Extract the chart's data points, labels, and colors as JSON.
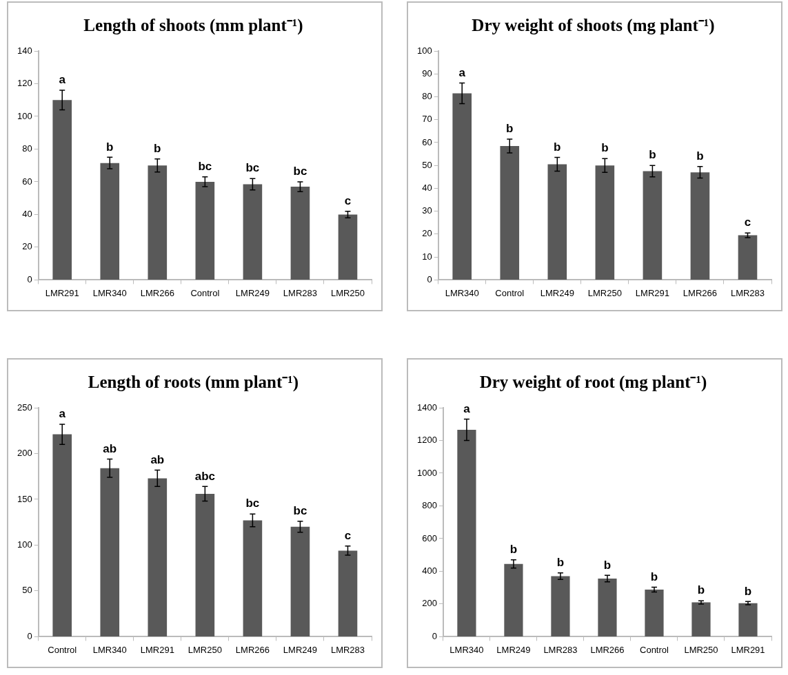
{
  "chart_data": [
    {
      "type": "bar",
      "title": "Length of shoots (mm plant⁻¹)",
      "categories": [
        "LMR291",
        "LMR340",
        "LMR266",
        "Control",
        "LMR249",
        "LMR283",
        "LMR250"
      ],
      "values": [
        110,
        71.5,
        70,
        60,
        58.5,
        57,
        40
      ],
      "errors": [
        6,
        3.5,
        4,
        3,
        3.5,
        3,
        2
      ],
      "color": "#595959",
      "ylim": [
        0,
        140
      ],
      "yticks": [
        0,
        20,
        40,
        60,
        80,
        100,
        120,
        140
      ],
      "grid": false,
      "annotations": [
        {
          "text": "a",
          "x": "LMR291",
          "y": 116
        },
        {
          "text": "b",
          "x": "LMR340",
          "y": 75
        },
        {
          "text": "b",
          "x": "LMR266",
          "y": 74
        },
        {
          "text": "bc",
          "x": "Control",
          "y": 63
        },
        {
          "text": "bc",
          "x": "LMR249",
          "y": 62
        },
        {
          "text": "bc",
          "x": "LMR283",
          "y": 60
        },
        {
          "text": "c",
          "x": "LMR250",
          "y": 42
        }
      ]
    },
    {
      "type": "bar",
      "title": "Dry weight of shoots (mg plant⁻¹)",
      "categories": [
        "LMR340",
        "Control",
        "LMR249",
        "LMR250",
        "LMR291",
        "LMR266",
        "LMR283"
      ],
      "values": [
        81.5,
        58.5,
        50.5,
        50,
        47.5,
        47,
        19.5
      ],
      "errors": [
        4.5,
        3,
        3,
        3,
        2.5,
        2.5,
        1
      ],
      "color": "#595959",
      "ylim": [
        0,
        100
      ],
      "yticks": [
        0,
        10,
        20,
        30,
        40,
        50,
        60,
        70,
        80,
        90,
        100
      ],
      "grid": false,
      "annotations": [
        {
          "text": "a",
          "x": "LMR340",
          "y": 86
        },
        {
          "text": "b",
          "x": "Control",
          "y": 61.5
        },
        {
          "text": "b",
          "x": "LMR249",
          "y": 53.5
        },
        {
          "text": "b",
          "x": "LMR250",
          "y": 53
        },
        {
          "text": "b",
          "x": "LMR291",
          "y": 50
        },
        {
          "text": "b",
          "x": "LMR266",
          "y": 49.5
        },
        {
          "text": "c",
          "x": "LMR283",
          "y": 20.5
        }
      ]
    },
    {
      "type": "bar",
      "title": "Length of roots (mm plant⁻¹)",
      "categories": [
        "Control",
        "LMR340",
        "LMR291",
        "LMR250",
        "LMR266",
        "LMR249",
        "LMR283"
      ],
      "values": [
        221,
        184,
        173,
        156,
        127,
        120,
        94
      ],
      "errors": [
        11,
        10,
        9,
        8,
        7,
        6,
        5
      ],
      "color": "#595959",
      "ylim": [
        0,
        250
      ],
      "yticks": [
        0,
        50,
        100,
        150,
        200,
        250
      ],
      "grid": false,
      "annotations": [
        {
          "text": "a",
          "x": "Control",
          "y": 232
        },
        {
          "text": "ab",
          "x": "LMR340",
          "y": 194
        },
        {
          "text": "ab",
          "x": "LMR291",
          "y": 182
        },
        {
          "text": "abc",
          "x": "LMR250",
          "y": 164
        },
        {
          "text": "bc",
          "x": "LMR266",
          "y": 134
        },
        {
          "text": "bc",
          "x": "LMR249",
          "y": 126
        },
        {
          "text": "c",
          "x": "LMR283",
          "y": 99
        }
      ]
    },
    {
      "type": "bar",
      "title": "Dry weight of root (mg plant⁻¹)",
      "categories": [
        "LMR340",
        "LMR249",
        "LMR283",
        "LMR266",
        "Control",
        "LMR250",
        "LMR291"
      ],
      "values": [
        1265,
        445,
        370,
        355,
        288,
        210,
        205
      ],
      "errors": [
        65,
        25,
        20,
        20,
        15,
        10,
        10
      ],
      "color": "#595959",
      "ylim": [
        0,
        1400
      ],
      "yticks": [
        0,
        200,
        400,
        600,
        800,
        1000,
        1200,
        1400
      ],
      "grid": false,
      "annotations": [
        {
          "text": "a",
          "x": "LMR340",
          "y": 1330
        },
        {
          "text": "b",
          "x": "LMR249",
          "y": 470
        },
        {
          "text": "b",
          "x": "LMR283",
          "y": 390
        },
        {
          "text": "b",
          "x": "LMR266",
          "y": 375
        },
        {
          "text": "b",
          "x": "Control",
          "y": 303
        },
        {
          "text": "b",
          "x": "LMR250",
          "y": 220
        },
        {
          "text": "b",
          "x": "LMR291",
          "y": 215
        }
      ]
    }
  ]
}
